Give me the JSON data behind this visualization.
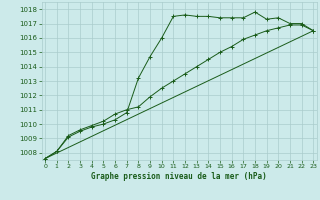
{
  "title": "Graphe pression niveau de la mer (hPa)",
  "bg_color": "#cceaea",
  "grid_color": "#aacccc",
  "line_color": "#1a5c1a",
  "x_ticks": [
    0,
    1,
    2,
    3,
    4,
    5,
    6,
    7,
    8,
    9,
    10,
    11,
    12,
    13,
    14,
    15,
    16,
    17,
    18,
    19,
    20,
    21,
    22,
    23
  ],
  "xlim": [
    -0.3,
    23.3
  ],
  "ylim": [
    1007.5,
    1018.5
  ],
  "yticks": [
    1008,
    1009,
    1010,
    1011,
    1012,
    1013,
    1014,
    1015,
    1016,
    1017,
    1018
  ],
  "series1_x": [
    0,
    1,
    2,
    3,
    4,
    5,
    6,
    7,
    8,
    9,
    10,
    11,
    12,
    13,
    14,
    15,
    16,
    17,
    18,
    19,
    20,
    21,
    22,
    23
  ],
  "series1_y": [
    1007.6,
    1008.1,
    1009.1,
    1009.5,
    1009.8,
    1010.0,
    1010.3,
    1010.8,
    1013.2,
    1014.7,
    1016.0,
    1017.5,
    1017.6,
    1017.5,
    1017.5,
    1017.4,
    1017.4,
    1017.4,
    1017.8,
    1017.3,
    1017.4,
    1017.0,
    1017.0,
    1016.5
  ],
  "series2_x": [
    0,
    1,
    2,
    3,
    4,
    5,
    6,
    7,
    8,
    9,
    10,
    11,
    12,
    13,
    14,
    15,
    16,
    17,
    18,
    19,
    20,
    21,
    22,
    23
  ],
  "series2_y": [
    1007.6,
    1008.1,
    1009.2,
    1009.6,
    1009.9,
    1010.2,
    1010.7,
    1011.0,
    1011.2,
    1011.9,
    1012.5,
    1013.0,
    1013.5,
    1014.0,
    1014.5,
    1015.0,
    1015.4,
    1015.9,
    1016.2,
    1016.5,
    1016.7,
    1016.9,
    1016.9,
    1016.5
  ],
  "series3_x": [
    0,
    23
  ],
  "series3_y": [
    1007.6,
    1016.5
  ]
}
